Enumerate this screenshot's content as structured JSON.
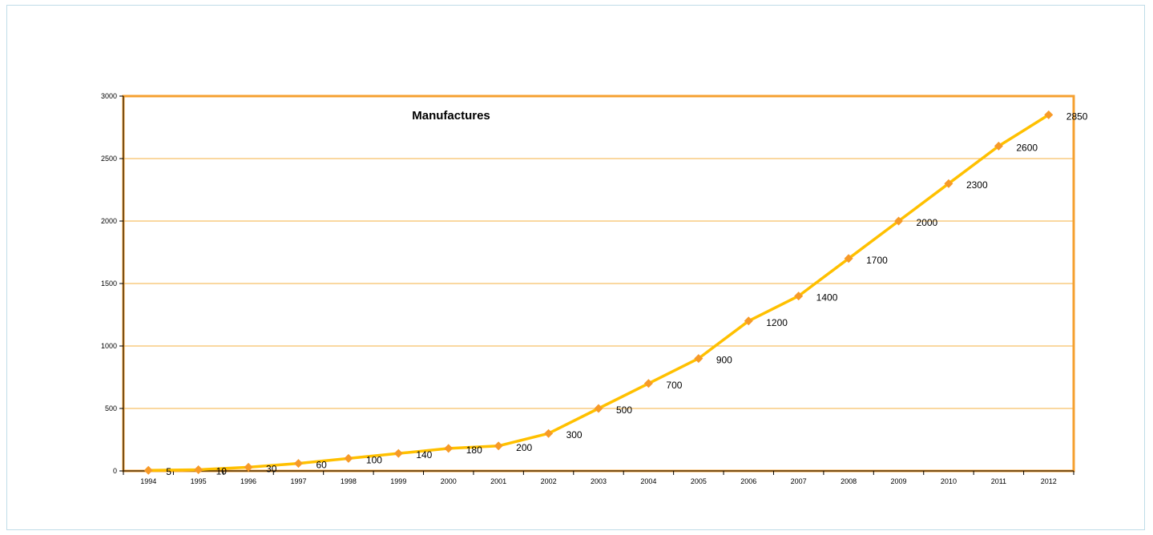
{
  "chart_data": {
    "type": "line",
    "title": "Manufactures",
    "xlabel": "",
    "ylabel": "",
    "categories": [
      "1994",
      "1995",
      "1996",
      "1997",
      "1998",
      "1999",
      "2000",
      "2001",
      "2002",
      "2003",
      "2004",
      "2005",
      "2006",
      "2007",
      "2008",
      "2009",
      "2010",
      "2011",
      "2012"
    ],
    "series": [
      {
        "values": [
          5,
          10,
          30,
          60,
          100,
          140,
          180,
          200,
          300,
          500,
          700,
          900,
          1200,
          1400,
          1700,
          2000,
          2300,
          2600,
          2850
        ]
      }
    ],
    "data_labels": [
      "5",
      "10",
      "30",
      "60",
      "100",
      "140",
      "180",
      "200",
      "300",
      "500",
      "700",
      "900",
      "1200",
      "1400",
      "1700",
      "2000",
      "2300",
      "2600",
      "2850"
    ],
    "y_ticks": [
      "0",
      "500",
      "1000",
      "1500",
      "2000",
      "2500",
      "3000"
    ],
    "ylim": [
      0,
      3000
    ],
    "grid": true,
    "colors": {
      "line": "#ffc000",
      "marker": "#f79a28",
      "plot_border": "#f5a030",
      "gridline": "#f5b040"
    }
  }
}
